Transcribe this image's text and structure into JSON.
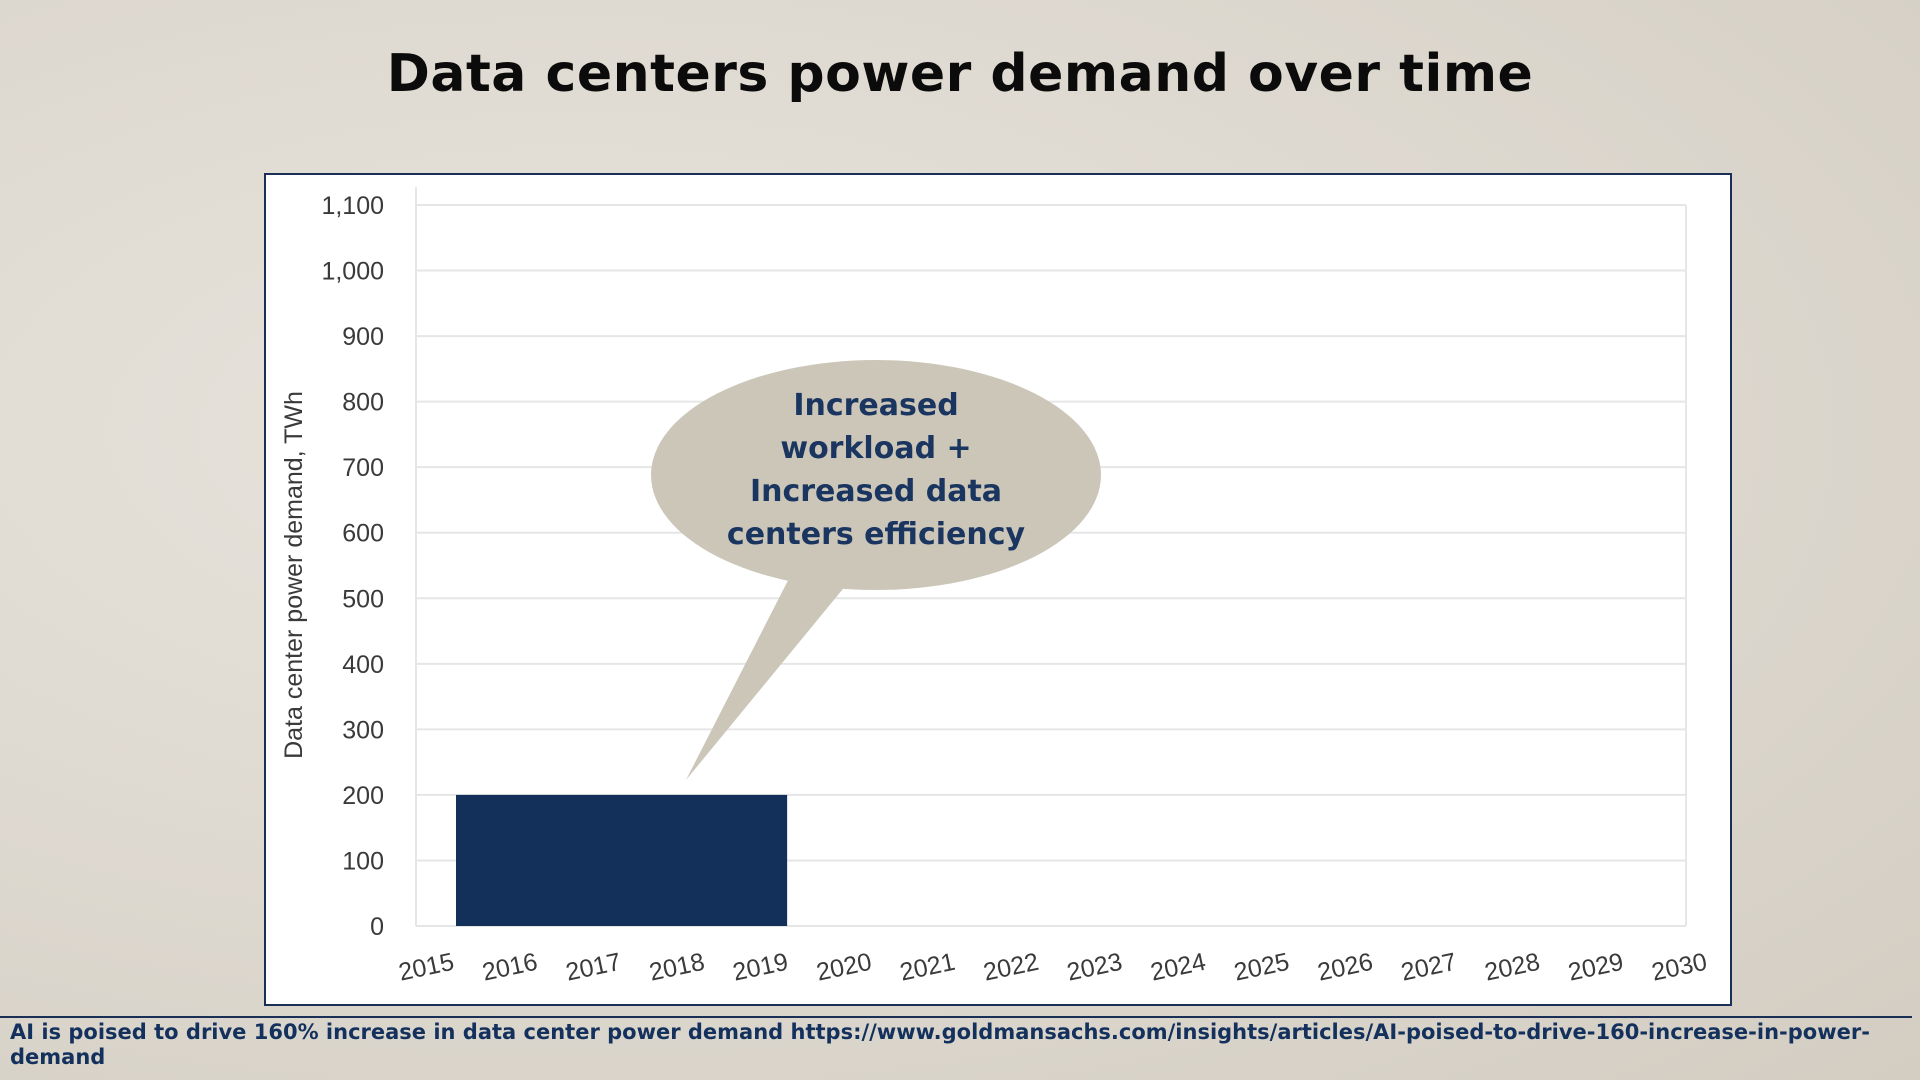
{
  "title": "Data centers power demand over time",
  "source_text": "AI is poised to drive 160% increase in data center power demand https://www.goldmansachs.com/insights/articles/AI-poised-to-drive-160-increase-in-power-demand",
  "colors": {
    "bar": "#13305a",
    "callout_fill": "#cbc6b8",
    "callout_text": "#1a3560",
    "grid": "#e6e6e6",
    "frame": "#1a2f55"
  },
  "chart_data": {
    "type": "bar",
    "title": "",
    "ylabel": "Data center power demand, TWh",
    "xlabel": "",
    "ylim": [
      0,
      1100
    ],
    "y_ticks": [
      0,
      100,
      200,
      300,
      400,
      500,
      600,
      700,
      800,
      900,
      1000,
      1100
    ],
    "y_tick_labels": [
      "0",
      "100",
      "200",
      "300",
      "400",
      "500",
      "600",
      "700",
      "800",
      "900",
      "1,000",
      "1,100"
    ],
    "x_ticks": [
      "2015",
      "2016",
      "2017",
      "2018",
      "2019",
      "2020",
      "2021",
      "2022",
      "2023",
      "2024",
      "2025",
      "2026",
      "2027",
      "2028",
      "2029",
      "2030"
    ],
    "bars": [
      {
        "x_start": "2015",
        "x_end": "2019",
        "value": 200
      }
    ],
    "grid": true,
    "annotation": {
      "lines": [
        "Increased",
        "workload +",
        "Increased data",
        "centers efficiency"
      ]
    }
  }
}
